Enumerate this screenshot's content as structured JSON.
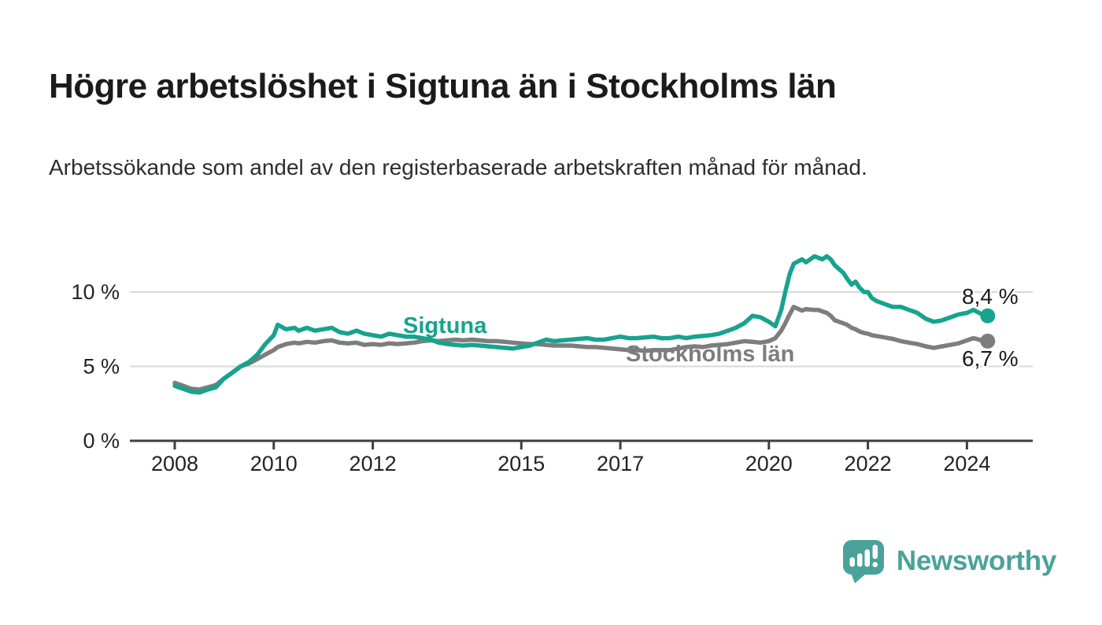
{
  "title": "Högre arbetslöshet i Sigtuna än i Stockholms län",
  "subtitle": "Arbetssökande som andel av den registerbaserade arbetskraften månad för månad.",
  "chart_data": {
    "type": "line",
    "x_unit": "decimal_year",
    "xlabel": "",
    "ylabel": "",
    "grid": "horizontal",
    "xlim": [
      2007.1,
      2025.4
    ],
    "ylim": [
      0,
      13.5
    ],
    "x": [
      2008.0,
      2008.17,
      2008.33,
      2008.5,
      2008.67,
      2008.83,
      2009.0,
      2009.17,
      2009.33,
      2009.5,
      2009.67,
      2009.83,
      2010.0,
      2010.08,
      2010.25,
      2010.42,
      2010.5,
      2010.67,
      2010.83,
      2011.0,
      2011.17,
      2011.33,
      2011.5,
      2011.67,
      2011.83,
      2012.0,
      2012.17,
      2012.33,
      2012.5,
      2012.67,
      2012.83,
      2013.0,
      2013.17,
      2013.33,
      2013.5,
      2013.67,
      2013.83,
      2014.0,
      2014.17,
      2014.33,
      2014.5,
      2014.67,
      2014.83,
      2015.0,
      2015.17,
      2015.33,
      2015.5,
      2015.67,
      2015.83,
      2016.0,
      2016.17,
      2016.33,
      2016.5,
      2016.67,
      2016.83,
      2017.0,
      2017.17,
      2017.33,
      2017.5,
      2017.67,
      2017.83,
      2018.0,
      2018.17,
      2018.33,
      2018.5,
      2018.67,
      2018.83,
      2019.0,
      2019.17,
      2019.33,
      2019.5,
      2019.67,
      2019.83,
      2020.0,
      2020.13,
      2020.25,
      2020.33,
      2020.42,
      2020.5,
      2020.67,
      2020.75,
      2020.92,
      2021.0,
      2021.08,
      2021.17,
      2021.25,
      2021.33,
      2021.5,
      2021.58,
      2021.67,
      2021.75,
      2021.83,
      2021.92,
      2022.0,
      2022.08,
      2022.17,
      2022.33,
      2022.5,
      2022.67,
      2022.83,
      2023.0,
      2023.17,
      2023.33,
      2023.5,
      2023.67,
      2023.83,
      2024.0,
      2024.13,
      2024.25,
      2024.33,
      2024.42
    ],
    "series": [
      {
        "name": "Stockholms län",
        "color": "#7d7d7d",
        "end_label": "6,7 %",
        "end_value": 6.7,
        "values": [
          3.9,
          3.7,
          3.5,
          3.45,
          3.6,
          3.75,
          4.2,
          4.6,
          5.0,
          5.2,
          5.5,
          5.8,
          6.1,
          6.3,
          6.5,
          6.6,
          6.55,
          6.65,
          6.6,
          6.7,
          6.75,
          6.6,
          6.55,
          6.6,
          6.45,
          6.5,
          6.45,
          6.55,
          6.5,
          6.55,
          6.6,
          6.7,
          6.75,
          6.7,
          6.75,
          6.8,
          6.75,
          6.8,
          6.75,
          6.7,
          6.7,
          6.65,
          6.6,
          6.55,
          6.5,
          6.5,
          6.45,
          6.4,
          6.4,
          6.4,
          6.35,
          6.3,
          6.3,
          6.25,
          6.2,
          6.15,
          6.1,
          6.1,
          6.05,
          6.1,
          6.1,
          6.1,
          6.2,
          6.3,
          6.35,
          6.3,
          6.4,
          6.45,
          6.5,
          6.6,
          6.7,
          6.65,
          6.6,
          6.7,
          6.9,
          7.4,
          7.9,
          8.5,
          9.0,
          8.75,
          8.85,
          8.8,
          8.8,
          8.7,
          8.6,
          8.4,
          8.1,
          7.9,
          7.8,
          7.6,
          7.5,
          7.35,
          7.25,
          7.2,
          7.1,
          7.05,
          6.95,
          6.85,
          6.7,
          6.6,
          6.5,
          6.35,
          6.25,
          6.35,
          6.45,
          6.55,
          6.75,
          6.9,
          6.8,
          6.7,
          6.7
        ]
      },
      {
        "name": "Sigtuna",
        "color": "#17a38e",
        "end_label": "8,4 %",
        "end_value": 8.4,
        "values": [
          3.7,
          3.5,
          3.3,
          3.25,
          3.45,
          3.6,
          4.2,
          4.6,
          5.0,
          5.3,
          5.8,
          6.5,
          7.1,
          7.8,
          7.5,
          7.6,
          7.4,
          7.6,
          7.4,
          7.5,
          7.6,
          7.3,
          7.2,
          7.4,
          7.2,
          7.1,
          7.0,
          7.2,
          7.1,
          7.0,
          7.0,
          6.9,
          6.8,
          6.6,
          6.5,
          6.45,
          6.4,
          6.45,
          6.4,
          6.35,
          6.3,
          6.25,
          6.2,
          6.3,
          6.4,
          6.6,
          6.8,
          6.7,
          6.75,
          6.8,
          6.85,
          6.9,
          6.8,
          6.8,
          6.9,
          7.0,
          6.9,
          6.9,
          6.95,
          7.0,
          6.9,
          6.9,
          7.0,
          6.9,
          7.0,
          7.05,
          7.1,
          7.2,
          7.4,
          7.6,
          7.9,
          8.4,
          8.3,
          8.0,
          7.7,
          8.8,
          10.0,
          11.2,
          11.9,
          12.2,
          12.0,
          12.4,
          12.3,
          12.2,
          12.4,
          12.2,
          11.8,
          11.3,
          10.9,
          10.5,
          10.7,
          10.3,
          10.0,
          10.0,
          9.6,
          9.4,
          9.2,
          9.0,
          9.0,
          8.8,
          8.6,
          8.2,
          8.0,
          8.1,
          8.3,
          8.5,
          8.6,
          8.8,
          8.6,
          8.45,
          8.4
        ]
      }
    ],
    "yticks": [
      {
        "value": 0,
        "label": "0 %"
      },
      {
        "value": 5,
        "label": "5 %"
      },
      {
        "value": 10,
        "label": "10 %"
      }
    ],
    "xticks": [
      {
        "value": 2008,
        "label": "2008"
      },
      {
        "value": 2010,
        "label": "2010"
      },
      {
        "value": 2012,
        "label": "2012"
      },
      {
        "value": 2015,
        "label": "2015"
      },
      {
        "value": 2017,
        "label": "2017"
      },
      {
        "value": 2020,
        "label": "2020"
      },
      {
        "value": 2022,
        "label": "2022"
      },
      {
        "value": 2024,
        "label": "2024"
      }
    ],
    "legend_position": "inline-labels"
  },
  "colors": {
    "sigtuna": "#17a38e",
    "stockholms_lan": "#7d7d7d",
    "axis": "#3f3f3f",
    "gridline": "#d9d9d9",
    "logo_teal": "#4aa29b"
  },
  "footer": {
    "brand": "Newsworthy"
  }
}
